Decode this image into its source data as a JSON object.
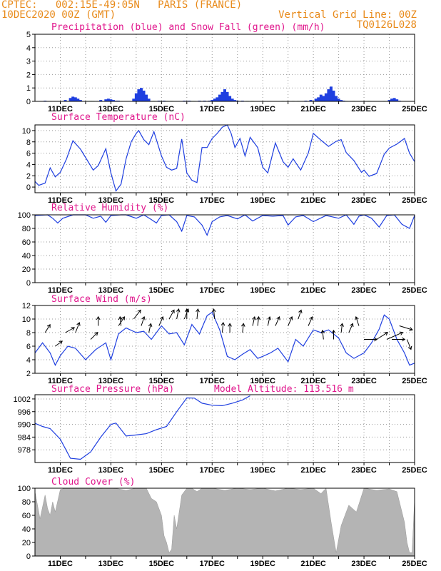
{
  "header": {
    "line1": "CPTEC:   002:15E-49:05N   PARIS (FRANCE)",
    "line2_left": "10DEC2020 00Z (GMT)",
    "line2_right": "Vertical Grid Line: 00Z",
    "code": "TQ0126L028"
  },
  "colors": {
    "orange": "#e88a1a",
    "magenta": "#e0168c",
    "blue": "#1f3fe0",
    "green": "#1a9a1a",
    "gray": "#b4b4b4"
  },
  "x_tick_labels": [
    "11DEC",
    "13DEC",
    "15DEC",
    "17DEC",
    "19DEC",
    "21DEC",
    "23DEC",
    "25DEC"
  ],
  "chart_data": [
    {
      "id": "precip",
      "type": "bar",
      "title": "Precipitation (blue) and Snow Fall (green) (mm/h)",
      "ylim": [
        0,
        5
      ],
      "yticks": [
        0,
        1,
        2,
        3,
        4,
        5
      ],
      "grid": true,
      "series": [
        {
          "name": "Precipitation",
          "color": "blue",
          "x": [
            10.4,
            11.2,
            11.4,
            11.5,
            11.6,
            11.7,
            11.8,
            12.6,
            12.8,
            12.9,
            13.0,
            13.1,
            13.2,
            13.3,
            13.9,
            14.0,
            14.1,
            14.2,
            14.3,
            14.4,
            14.5,
            14.9,
            15.1,
            15.9,
            16.1,
            16.5,
            16.7,
            16.9,
            17.0,
            17.1,
            17.2,
            17.3,
            17.4,
            17.5,
            17.6,
            17.7,
            17.8,
            17.9,
            18.0,
            18.2,
            20.7,
            20.9,
            21.1,
            21.2,
            21.3,
            21.4,
            21.5,
            21.6,
            21.7,
            21.8,
            21.9,
            22.0,
            22.1,
            22.2,
            24.0,
            24.1,
            24.2,
            24.3,
            24.4
          ],
          "y": [
            0.05,
            0.1,
            0.25,
            0.35,
            0.3,
            0.2,
            0.1,
            0.1,
            0.15,
            0.2,
            0.15,
            0.1,
            0.05,
            0.05,
            0.2,
            0.6,
            0.9,
            1.0,
            0.8,
            0.5,
            0.2,
            0.05,
            0.05,
            0.05,
            0.05,
            0.05,
            0.05,
            0.05,
            0.1,
            0.2,
            0.3,
            0.5,
            0.7,
            0.9,
            0.7,
            0.4,
            0.2,
            0.1,
            0.05,
            0.05,
            0.05,
            0.1,
            0.2,
            0.3,
            0.5,
            0.4,
            0.6,
            0.9,
            1.1,
            0.8,
            0.4,
            0.2,
            0.1,
            0.05,
            0.1,
            0.2,
            0.25,
            0.15,
            0.05
          ]
        },
        {
          "name": "Snow Fall",
          "color": "green",
          "x": [
            12.1,
            12.2,
            12.3,
            14.7,
            15.0,
            15.2,
            15.4,
            16.2,
            16.3,
            18.1,
            18.4,
            18.6,
            19.8,
            20.2,
            20.4,
            22.3,
            22.6,
            23.2,
            23.8
          ],
          "y": [
            0.03,
            0.03,
            0.03,
            0.03,
            0.03,
            0.03,
            0.03,
            0.03,
            0.03,
            0.03,
            0.03,
            0.03,
            0.03,
            0.03,
            0.03,
            0.03,
            0.03,
            0.03,
            0.03
          ]
        }
      ]
    },
    {
      "id": "temp",
      "type": "line",
      "title": "Surface Temperature (nC)",
      "ylim": [
        -1,
        11
      ],
      "yticks": [
        0,
        2,
        4,
        6,
        8,
        10
      ],
      "grid": true,
      "series": [
        {
          "color": "blue",
          "x": [
            10.0,
            10.15,
            10.4,
            10.6,
            10.8,
            11.0,
            11.25,
            11.5,
            11.8,
            12.1,
            12.3,
            12.5,
            12.8,
            13.0,
            13.2,
            13.4,
            13.6,
            13.8,
            14.0,
            14.1,
            14.3,
            14.5,
            14.7,
            15.0,
            15.2,
            15.4,
            15.6,
            15.8,
            16.0,
            16.2,
            16.4,
            16.6,
            16.8,
            17.0,
            17.2,
            17.4,
            17.6,
            17.75,
            17.9,
            18.1,
            18.3,
            18.5,
            18.8,
            19.0,
            19.2,
            19.5,
            19.8,
            20.0,
            20.2,
            20.5,
            20.8,
            21.0,
            21.3,
            21.6,
            21.9,
            22.1,
            22.3,
            22.6,
            22.9,
            23.0,
            23.2,
            23.5,
            23.8,
            24.0,
            24.3,
            24.6,
            24.8,
            25.0
          ],
          "y": [
            1.0,
            0.3,
            0.7,
            3.4,
            1.8,
            2.6,
            5.0,
            8.2,
            6.7,
            4.5,
            3.0,
            3.8,
            6.8,
            2.5,
            -0.7,
            0.5,
            5.0,
            8.0,
            9.5,
            10.0,
            8.4,
            7.5,
            9.8,
            5.5,
            3.5,
            3.0,
            3.3,
            8.5,
            2.5,
            1.2,
            0.8,
            7.0,
            7.0,
            8.6,
            9.5,
            10.6,
            11.0,
            9.5,
            7.0,
            8.6,
            5.5,
            8.8,
            7.0,
            3.5,
            2.5,
            7.8,
            4.5,
            3.5,
            5.0,
            3.0,
            6.0,
            9.5,
            8.3,
            7.2,
            8.1,
            8.4,
            6.1,
            4.7,
            2.6,
            3.0,
            1.9,
            2.4,
            5.8,
            6.9,
            7.6,
            8.6,
            6.0,
            4.5
          ]
        }
      ]
    },
    {
      "id": "rh",
      "type": "line",
      "title": "Relative Humidity (%)",
      "ylim": [
        0,
        100
      ],
      "yticks": [
        0,
        20,
        40,
        60,
        80,
        100
      ],
      "grid": true,
      "series": [
        {
          "color": "blue",
          "x": [
            10.0,
            10.5,
            10.7,
            10.9,
            11.1,
            11.5,
            12.0,
            12.3,
            12.6,
            12.8,
            13.0,
            13.4,
            13.6,
            14.0,
            14.3,
            14.6,
            14.8,
            15.0,
            15.3,
            15.6,
            15.8,
            16.0,
            16.3,
            16.6,
            16.8,
            17.0,
            17.3,
            17.6,
            18.0,
            18.3,
            18.6,
            19.0,
            19.4,
            19.8,
            20.0,
            20.3,
            20.6,
            21.0,
            21.5,
            22.0,
            22.3,
            22.6,
            22.8,
            23.0,
            23.3,
            23.6,
            23.9,
            24.2,
            24.5,
            24.8,
            25.0
          ],
          "y": [
            99,
            100,
            95,
            88,
            95,
            100,
            100,
            95,
            98,
            89,
            99,
            100,
            100,
            95,
            100,
            93,
            88,
            99,
            100,
            90,
            76,
            99,
            97,
            85,
            70,
            90,
            97,
            99,
            94,
            100,
            91,
            99,
            98,
            99,
            85,
            97,
            99,
            90,
            99,
            95,
            100,
            86,
            98,
            100,
            95,
            82,
            99,
            100,
            86,
            80,
            99
          ]
        }
      ]
    },
    {
      "id": "wind",
      "type": "line",
      "title": "Surface Wind (m/s)",
      "ylim": [
        2,
        12
      ],
      "yticks": [
        2,
        4,
        6,
        8,
        10,
        12
      ],
      "grid": true,
      "series": [
        {
          "color": "blue",
          "x": [
            10.0,
            10.3,
            10.6,
            10.8,
            11.0,
            11.3,
            11.6,
            12.0,
            12.4,
            12.8,
            13.0,
            13.3,
            13.6,
            14.0,
            14.3,
            14.6,
            15.0,
            15.3,
            15.6,
            15.9,
            16.2,
            16.5,
            16.8,
            17.0,
            17.3,
            17.6,
            17.9,
            18.2,
            18.5,
            18.8,
            19.0,
            19.3,
            19.6,
            20.0,
            20.3,
            20.6,
            21.0,
            21.3,
            21.6,
            22.0,
            22.3,
            22.6,
            23.0,
            23.3,
            23.6,
            23.8,
            24.0,
            24.3,
            24.6,
            24.8,
            25.0
          ],
          "y": [
            5.0,
            6.5,
            5.0,
            3.2,
            4.6,
            6.0,
            5.7,
            4.0,
            5.5,
            6.5,
            4.0,
            7.8,
            8.7,
            8.0,
            8.2,
            7.0,
            9.0,
            7.8,
            8.0,
            6.2,
            9.2,
            7.8,
            10.5,
            11.0,
            8.4,
            4.5,
            4.0,
            4.8,
            5.5,
            4.2,
            4.5,
            5.0,
            5.7,
            3.7,
            7.0,
            6.0,
            8.4,
            8.0,
            8.4,
            7.2,
            5.0,
            4.2,
            5.0,
            6.5,
            8.5,
            10.6,
            10.0,
            7.0,
            5.0,
            3.2,
            3.5
          ]
        }
      ]
    },
    {
      "id": "pressure",
      "type": "line",
      "title": "Surface Pressure (hPa)",
      "annotation": "Model Altitude: 113.516 m",
      "ylim": [
        972,
        1004
      ],
      "yticks": [
        978,
        984,
        990,
        996,
        1002
      ],
      "grid": true,
      "series": [
        {
          "color": "blue",
          "x": [
            10.0,
            10.3,
            10.6,
            11.0,
            11.4,
            11.8,
            12.2,
            12.6,
            13.0,
            13.2,
            13.6,
            14.0,
            14.4,
            14.8,
            15.2,
            15.6,
            16.0,
            16.3,
            16.6,
            17.0,
            17.4,
            17.8,
            18.2,
            18.5
          ],
          "y": [
            990.5,
            989,
            988,
            983,
            974,
            973.5,
            977,
            984,
            990,
            990.6,
            984.5,
            985,
            985.6,
            987.5,
            989,
            996,
            1002.5,
            1002.4,
            1000,
            999,
            998.8,
            1000,
            1001.5,
            1003.5
          ]
        }
      ]
    },
    {
      "id": "cloud",
      "type": "area",
      "title": "Cloud Cover (%)",
      "ylim": [
        0,
        100
      ],
      "yticks": [
        0,
        20,
        40,
        60,
        80,
        100
      ],
      "grid": false,
      "series": [
        {
          "color": "gray",
          "x": [
            10.0,
            10.2,
            10.4,
            10.5,
            10.6,
            10.7,
            10.8,
            11.0,
            11.2,
            11.6,
            12.0,
            12.4,
            12.8,
            13.0,
            13.3,
            13.6,
            14.0,
            14.4,
            14.6,
            14.8,
            15.0,
            15.1,
            15.2,
            15.3,
            15.4,
            15.5,
            15.6,
            15.8,
            16.0,
            16.2,
            16.4,
            16.6,
            17.0,
            17.5,
            18.0,
            18.5,
            19.0,
            19.5,
            20.0,
            20.5,
            21.0,
            21.3,
            21.5,
            21.7,
            21.9,
            22.1,
            22.4,
            22.7,
            23.0,
            23.5,
            24.0,
            24.3,
            24.6,
            24.7,
            24.8,
            24.9,
            25.0
          ],
          "y": [
            95,
            55,
            90,
            70,
            60,
            80,
            65,
            98,
            100,
            100,
            100,
            99,
            100,
            100,
            99,
            97,
            100,
            100,
            85,
            80,
            60,
            30,
            20,
            5,
            10,
            60,
            40,
            90,
            100,
            100,
            95,
            100,
            100,
            97,
            100,
            98,
            100,
            96,
            100,
            98,
            100,
            92,
            100,
            50,
            5,
            45,
            75,
            65,
            100,
            97,
            99,
            95,
            50,
            20,
            5,
            5,
            85
          ]
        }
      ]
    }
  ],
  "wind_vectors": {
    "speeds": [
      8,
      6,
      8,
      8,
      7,
      9,
      9,
      9,
      10,
      9,
      8,
      9,
      10,
      10,
      10,
      10,
      10,
      10,
      8,
      8,
      8,
      9,
      9,
      9,
      9,
      9,
      10,
      9,
      7,
      7,
      8,
      8,
      9,
      7,
      7,
      7,
      7,
      9,
      7
    ],
    "x": [
      10.4,
      10.8,
      11.2,
      11.6,
      12.2,
      12.5,
      13.3,
      13.4,
      13.9,
      14.2,
      14.5,
      14.9,
      15.3,
      15.6,
      15.9,
      16.0,
      16.4,
      17.1,
      17.4,
      17.7,
      18.2,
      18.6,
      18.8,
      19.2,
      19.5,
      20.0,
      20.4,
      20.8,
      21.4,
      21.8,
      22.1,
      22.4,
      22.8,
      23.0,
      23.5,
      23.9,
      24.1,
      24.4,
      24.7
    ],
    "dir": [
      [
        5,
        -8
      ],
      [
        7,
        -5
      ],
      [
        9,
        -5
      ],
      [
        4,
        -10
      ],
      [
        7,
        -7
      ],
      [
        0,
        -9
      ],
      [
        6,
        -9
      ],
      [
        -1,
        -9
      ],
      [
        7,
        -9
      ],
      [
        3,
        -9
      ],
      [
        2,
        -9
      ],
      [
        4,
        -9
      ],
      [
        5,
        -9
      ],
      [
        2,
        -10
      ],
      [
        4,
        -10
      ],
      [
        0,
        -10
      ],
      [
        1,
        -10
      ],
      [
        -1,
        -10
      ],
      [
        1,
        -10
      ],
      [
        0,
        -9
      ],
      [
        1,
        -9
      ],
      [
        2,
        -9
      ],
      [
        1,
        -9
      ],
      [
        2,
        -9
      ],
      [
        4,
        -9
      ],
      [
        4,
        -9
      ],
      [
        3,
        -9
      ],
      [
        4,
        -9
      ],
      [
        -1,
        -9
      ],
      [
        0,
        -9
      ],
      [
        1,
        -9
      ],
      [
        4,
        -9
      ],
      [
        -3,
        -9
      ],
      [
        13,
        0
      ],
      [
        11,
        -7
      ],
      [
        16,
        -7
      ],
      [
        13,
        0
      ],
      [
        13,
        4
      ],
      [
        4,
        10
      ]
    ]
  }
}
